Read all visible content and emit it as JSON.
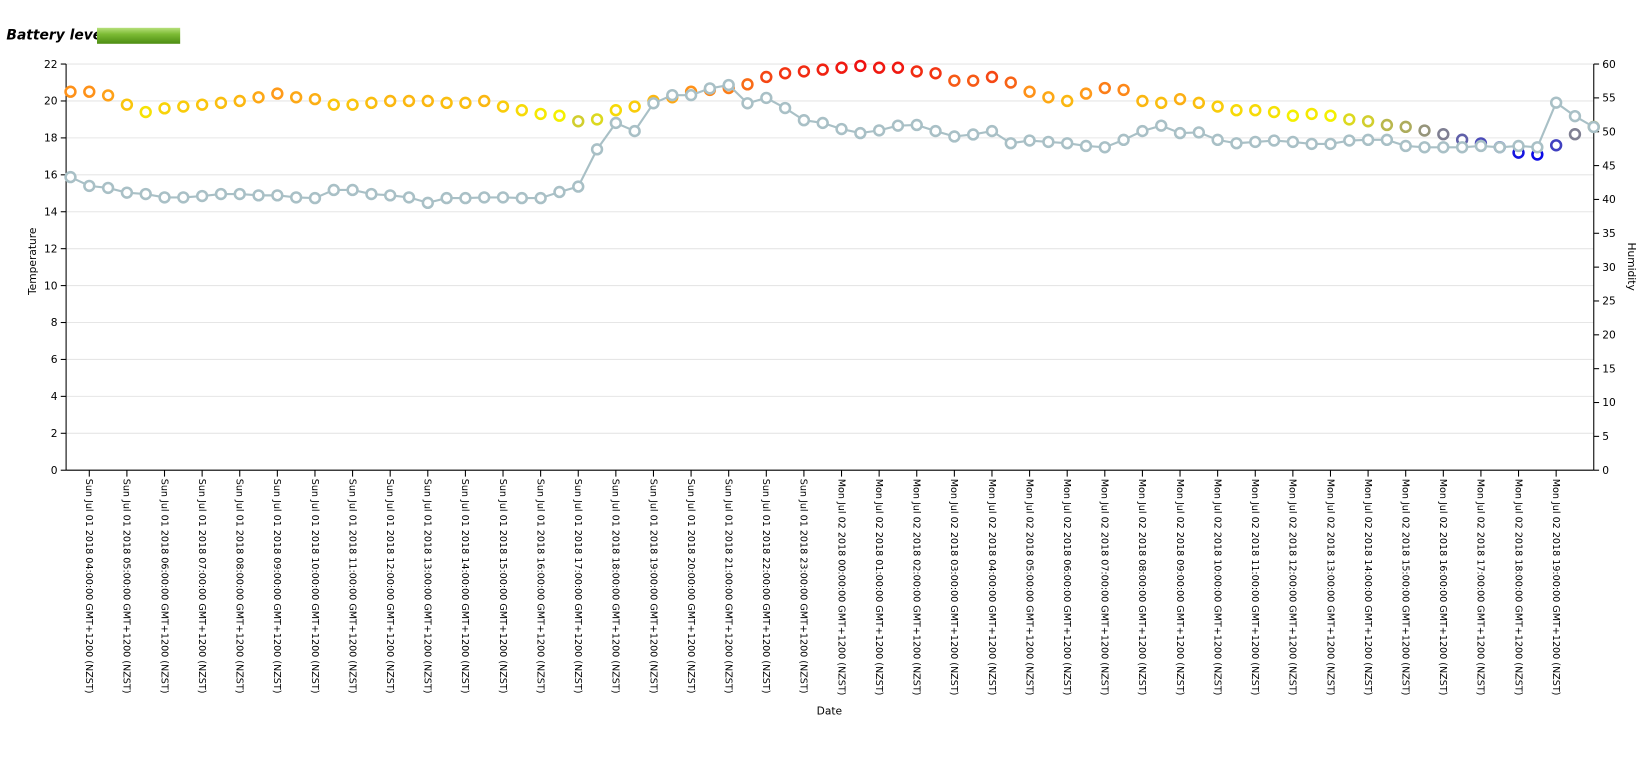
{
  "header": {
    "battery_label": "Battery level"
  },
  "chart_data": {
    "type": "line",
    "xlabel": "Date",
    "ylabel": "Temperature",
    "y2label": "Humidity",
    "x": [
      "2018-07-01T03:30",
      "2018-07-01T04:00",
      "2018-07-01T04:30",
      "2018-07-01T05:00",
      "2018-07-01T05:30",
      "2018-07-01T06:00",
      "2018-07-01T06:30",
      "2018-07-01T07:00",
      "2018-07-01T07:30",
      "2018-07-01T08:00",
      "2018-07-01T08:30",
      "2018-07-01T09:00",
      "2018-07-01T09:30",
      "2018-07-01T10:00",
      "2018-07-01T10:30",
      "2018-07-01T11:00",
      "2018-07-01T11:30",
      "2018-07-01T12:00",
      "2018-07-01T12:30",
      "2018-07-01T13:00",
      "2018-07-01T13:30",
      "2018-07-01T14:00",
      "2018-07-01T14:30",
      "2018-07-01T15:00",
      "2018-07-01T15:30",
      "2018-07-01T16:00",
      "2018-07-01T16:30",
      "2018-07-01T17:00",
      "2018-07-01T17:30",
      "2018-07-01T18:00",
      "2018-07-01T18:30",
      "2018-07-01T19:00",
      "2018-07-01T19:30",
      "2018-07-01T20:00",
      "2018-07-01T20:30",
      "2018-07-01T21:00",
      "2018-07-01T21:30",
      "2018-07-01T22:00",
      "2018-07-01T22:30",
      "2018-07-01T23:00",
      "2018-07-01T23:30",
      "2018-07-02T00:00",
      "2018-07-02T00:30",
      "2018-07-02T01:00",
      "2018-07-02T01:30",
      "2018-07-02T02:00",
      "2018-07-02T02:30",
      "2018-07-02T03:00",
      "2018-07-02T03:30",
      "2018-07-02T04:00",
      "2018-07-02T04:30",
      "2018-07-02T05:00",
      "2018-07-02T05:30",
      "2018-07-02T06:00",
      "2018-07-02T06:30",
      "2018-07-02T07:00",
      "2018-07-02T07:30",
      "2018-07-02T08:00",
      "2018-07-02T08:30",
      "2018-07-02T09:00",
      "2018-07-02T09:30",
      "2018-07-02T10:00",
      "2018-07-02T10:30",
      "2018-07-02T11:00",
      "2018-07-02T11:30",
      "2018-07-02T12:00",
      "2018-07-02T12:30",
      "2018-07-02T13:00",
      "2018-07-02T13:30",
      "2018-07-02T14:00",
      "2018-07-02T14:30",
      "2018-07-02T15:00",
      "2018-07-02T15:30",
      "2018-07-02T16:00",
      "2018-07-02T16:30",
      "2018-07-02T17:00",
      "2018-07-02T17:30",
      "2018-07-02T18:00",
      "2018-07-02T18:30",
      "2018-07-02T19:00",
      "2018-07-02T19:30",
      "2018-07-02T20:00"
    ],
    "series": [
      {
        "color_stops": [
          {
            "value": 17,
            "color": "#0000ee"
          },
          {
            "value": 18.3,
            "color": "#8a8a8a"
          },
          {
            "value": 19.2,
            "color": "#f4f000"
          },
          {
            "value": 20.4,
            "color": "#ff9a1a"
          },
          {
            "value": 21.9,
            "color": "#ee1010"
          }
        ],
        "values": [
          20.5,
          20.5,
          20.3,
          19.8,
          19.4,
          19.6,
          19.7,
          19.8,
          19.9,
          20.0,
          20.2,
          20.4,
          20.2,
          20.1,
          19.8,
          19.8,
          19.9,
          20.0,
          20.0,
          20.0,
          19.9,
          19.9,
          20.0,
          19.7,
          19.5,
          19.3,
          19.2,
          18.9,
          19.0,
          19.5,
          19.7,
          20.0,
          20.2,
          20.5,
          20.6,
          20.7,
          20.9,
          21.3,
          21.5,
          21.6,
          21.7,
          21.8,
          21.9,
          21.8,
          21.8,
          21.6,
          21.5,
          21.1,
          21.1,
          21.3,
          21.0,
          20.5,
          20.2,
          20.0,
          20.4,
          20.7,
          20.6,
          20.0,
          19.9,
          20.1,
          19.9,
          19.7,
          19.5,
          19.5,
          19.4,
          19.2,
          19.3,
          19.2,
          19.0,
          18.9,
          18.7,
          18.6,
          18.4,
          18.2,
          17.9,
          17.7,
          17.5,
          17.2,
          17.1,
          17.6,
          18.2,
          18.6
        ]
      },
      {
        "color": "#a9c0c6",
        "axis": "y2",
        "values": [
          43.3,
          42,
          41.7,
          41,
          40.8,
          40.3,
          40.3,
          40.5,
          40.8,
          40.8,
          40.6,
          40.6,
          40.3,
          40.2,
          41.4,
          41.4,
          40.8,
          40.6,
          40.3,
          39.5,
          40.2,
          40.2,
          40.3,
          40.3,
          40.2,
          40.2,
          41.1,
          41.9,
          47.4,
          51.3,
          50.1,
          54.2,
          55.4,
          55.4,
          56.4,
          56.9,
          54.2,
          55,
          53.5,
          51.7,
          51.3,
          50.4,
          49.8,
          50.2,
          50.9,
          51,
          50.1,
          49.3,
          49.6,
          50.1,
          48.3,
          48.7,
          48.5,
          48.3,
          47.9,
          47.7,
          48.8,
          50.1,
          50.9,
          49.8,
          49.9,
          48.8,
          48.3,
          48.5,
          48.7,
          48.5,
          48.2,
          48.2,
          48.7,
          48.8,
          48.8,
          47.9,
          47.7,
          47.7,
          47.7,
          47.9,
          47.7,
          47.9,
          47.7,
          54.3,
          52.3,
          50.7
        ]
      }
    ],
    "xlim": [
      "2018-07-01T03:23",
      "2018-07-02T20:00"
    ],
    "xticks": [
      {
        "value": "2018-07-01T04:00",
        "label": "Sun Jul 01 2018 04:00:00 GMT+1200 (NZST)"
      },
      {
        "value": "2018-07-01T05:00",
        "label": "Sun Jul 01 2018 05:00:00 GMT+1200 (NZST)"
      },
      {
        "value": "2018-07-01T06:00",
        "label": "Sun Jul 01 2018 06:00:00 GMT+1200 (NZST)"
      },
      {
        "value": "2018-07-01T07:00",
        "label": "Sun Jul 01 2018 07:00:00 GMT+1200 (NZST)"
      },
      {
        "value": "2018-07-01T08:00",
        "label": "Sun Jul 01 2018 08:00:00 GMT+1200 (NZST)"
      },
      {
        "value": "2018-07-01T09:00",
        "label": "Sun Jul 01 2018 09:00:00 GMT+1200 (NZST)"
      },
      {
        "value": "2018-07-01T10:00",
        "label": "Sun Jul 01 2018 10:00:00 GMT+1200 (NZST)"
      },
      {
        "value": "2018-07-01T11:00",
        "label": "Sun Jul 01 2018 11:00:00 GMT+1200 (NZST)"
      },
      {
        "value": "2018-07-01T12:00",
        "label": "Sun Jul 01 2018 12:00:00 GMT+1200 (NZST)"
      },
      {
        "value": "2018-07-01T13:00",
        "label": "Sun Jul 01 2018 13:00:00 GMT+1200 (NZST)"
      },
      {
        "value": "2018-07-01T14:00",
        "label": "Sun Jul 01 2018 14:00:00 GMT+1200 (NZST)"
      },
      {
        "value": "2018-07-01T15:00",
        "label": "Sun Jul 01 2018 15:00:00 GMT+1200 (NZST)"
      },
      {
        "value": "2018-07-01T16:00",
        "label": "Sun Jul 01 2018 16:00:00 GMT+1200 (NZST)"
      },
      {
        "value": "2018-07-01T17:00",
        "label": "Sun Jul 01 2018 17:00:00 GMT+1200 (NZST)"
      },
      {
        "value": "2018-07-01T18:00",
        "label": "Sun Jul 01 2018 18:00:00 GMT+1200 (NZST)"
      },
      {
        "value": "2018-07-01T19:00",
        "label": "Sun Jul 01 2018 19:00:00 GMT+1200 (NZST)"
      },
      {
        "value": "2018-07-01T20:00",
        "label": "Sun Jul 01 2018 20:00:00 GMT+1200 (NZST)"
      },
      {
        "value": "2018-07-01T21:00",
        "label": "Sun Jul 01 2018 21:00:00 GMT+1200 (NZST)"
      },
      {
        "value": "2018-07-01T22:00",
        "label": "Sun Jul 01 2018 22:00:00 GMT+1200 (NZST)"
      },
      {
        "value": "2018-07-01T23:00",
        "label": "Sun Jul 01 2018 23:00:00 GMT+1200 (NZST)"
      },
      {
        "value": "2018-07-02T00:00",
        "label": "Mon Jul 02 2018 00:00:00 GMT+1200 (NZST)"
      },
      {
        "value": "2018-07-02T01:00",
        "label": "Mon Jul 02 2018 01:00:00 GMT+1200 (NZST)"
      },
      {
        "value": "2018-07-02T02:00",
        "label": "Mon Jul 02 2018 02:00:00 GMT+1200 (NZST)"
      },
      {
        "value": "2018-07-02T03:00",
        "label": "Mon Jul 02 2018 03:00:00 GMT+1200 (NZST)"
      },
      {
        "value": "2018-07-02T04:00",
        "label": "Mon Jul 02 2018 04:00:00 GMT+1200 (NZST)"
      },
      {
        "value": "2018-07-02T05:00",
        "label": "Mon Jul 02 2018 05:00:00 GMT+1200 (NZST)"
      },
      {
        "value": "2018-07-02T06:00",
        "label": "Mon Jul 02 2018 06:00:00 GMT+1200 (NZST)"
      },
      {
        "value": "2018-07-02T07:00",
        "label": "Mon Jul 02 2018 07:00:00 GMT+1200 (NZST)"
      },
      {
        "value": "2018-07-02T08:00",
        "label": "Mon Jul 02 2018 08:00:00 GMT+1200 (NZST)"
      },
      {
        "value": "2018-07-02T09:00",
        "label": "Mon Jul 02 2018 09:00:00 GMT+1200 (NZST)"
      },
      {
        "value": "2018-07-02T10:00",
        "label": "Mon Jul 02 2018 10:00:00 GMT+1200 (NZST)"
      },
      {
        "value": "2018-07-02T11:00",
        "label": "Mon Jul 02 2018 11:00:00 GMT+1200 (NZST)"
      },
      {
        "value": "2018-07-02T12:00",
        "label": "Mon Jul 02 2018 12:00:00 GMT+1200 (NZST)"
      },
      {
        "value": "2018-07-02T13:00",
        "label": "Mon Jul 02 2018 13:00:00 GMT+1200 (NZST)"
      },
      {
        "value": "2018-07-02T14:00",
        "label": "Mon Jul 02 2018 14:00:00 GMT+1200 (NZST)"
      },
      {
        "value": "2018-07-02T15:00",
        "label": "Mon Jul 02 2018 15:00:00 GMT+1200 (NZST)"
      },
      {
        "value": "2018-07-02T16:00",
        "label": "Mon Jul 02 2018 16:00:00 GMT+1200 (NZST)"
      },
      {
        "value": "2018-07-02T17:00",
        "label": "Mon Jul 02 2018 17:00:00 GMT+1200 (NZST)"
      },
      {
        "value": "2018-07-02T18:00",
        "label": "Mon Jul 02 2018 18:00:00 GMT+1200 (NZST)"
      },
      {
        "value": "2018-07-02T19:00",
        "label": "Mon Jul 02 2018 19:00:00 GMT+1200 (NZST)"
      }
    ],
    "ylim": [
      0,
      22
    ],
    "yticks": [
      0,
      2,
      4,
      6,
      8,
      10,
      12,
      14,
      16,
      18,
      20,
      22
    ],
    "y2lim": [
      0,
      60
    ],
    "y2ticks": [
      0,
      5,
      10,
      15,
      20,
      25,
      30,
      35,
      40,
      45,
      50,
      55,
      60
    ],
    "grid": true
  }
}
